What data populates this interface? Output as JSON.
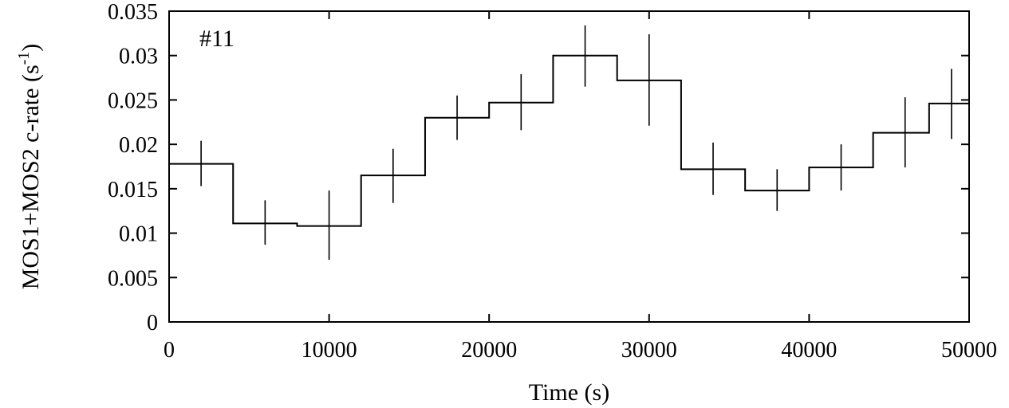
{
  "chart_data": {
    "type": "line",
    "xlabel": "Time (s)",
    "ylabel_main": "MOS1+MOS2 c-rate (s",
    "ylabel_sup": "-1",
    "ylabel_close": ")",
    "annotation": "#11",
    "xlim": [
      0,
      50000
    ],
    "ylim": [
      0,
      0.035
    ],
    "xticks": [
      0,
      10000,
      20000,
      30000,
      40000,
      50000
    ],
    "xtick_labels": [
      "0",
      "10000",
      "20000",
      "30000",
      "40000",
      "50000"
    ],
    "yticks": [
      0,
      0.005,
      0.01,
      0.015,
      0.02,
      0.025,
      0.03,
      0.035
    ],
    "ytick_labels": [
      "0",
      "0.005",
      "0.01",
      "0.015",
      "0.02",
      "0.025",
      "0.03",
      "0.035"
    ],
    "grid": false,
    "series": [
      {
        "bins": [
          {
            "x0": 0,
            "x1": 4000,
            "x": 2000,
            "y": 0.0178,
            "ylo": 0.0153,
            "yhi": 0.0204
          },
          {
            "x0": 4000,
            "x1": 8000,
            "x": 6000,
            "y": 0.0111,
            "ylo": 0.0087,
            "yhi": 0.0137
          },
          {
            "x0": 8000,
            "x1": 12000,
            "x": 10000,
            "y": 0.0108,
            "ylo": 0.007,
            "yhi": 0.0148
          },
          {
            "x0": 12000,
            "x1": 16000,
            "x": 14000,
            "y": 0.0165,
            "ylo": 0.0134,
            "yhi": 0.0195
          },
          {
            "x0": 16000,
            "x1": 20000,
            "x": 18000,
            "y": 0.023,
            "ylo": 0.0205,
            "yhi": 0.0255
          },
          {
            "x0": 20000,
            "x1": 24000,
            "x": 22000,
            "y": 0.0247,
            "ylo": 0.0216,
            "yhi": 0.0279
          },
          {
            "x0": 24000,
            "x1": 28000,
            "x": 26000,
            "y": 0.03,
            "ylo": 0.0265,
            "yhi": 0.0334
          },
          {
            "x0": 28000,
            "x1": 32000,
            "x": 30000,
            "y": 0.0272,
            "ylo": 0.0221,
            "yhi": 0.0324
          },
          {
            "x0": 32000,
            "x1": 36000,
            "x": 34000,
            "y": 0.0172,
            "ylo": 0.0143,
            "yhi": 0.0202
          },
          {
            "x0": 36000,
            "x1": 40000,
            "x": 38000,
            "y": 0.0148,
            "ylo": 0.0125,
            "yhi": 0.0172
          },
          {
            "x0": 40000,
            "x1": 44000,
            "x": 42000,
            "y": 0.0174,
            "ylo": 0.0148,
            "yhi": 0.02
          },
          {
            "x0": 44000,
            "x1": 47500,
            "x": 46000,
            "y": 0.0213,
            "ylo": 0.0174,
            "yhi": 0.0253
          },
          {
            "x0": 47500,
            "x1": 50000,
            "x": 48900,
            "y": 0.0246,
            "ylo": 0.0206,
            "yhi": 0.0285
          }
        ]
      }
    ]
  }
}
